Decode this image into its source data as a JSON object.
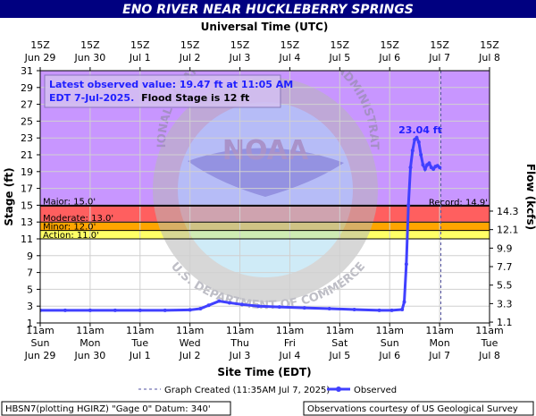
{
  "chart_data": {
    "type": "line",
    "title": "ENO RIVER NEAR HUCKLEBERRY SPRINGS",
    "top_axis_title": "Universal Time (UTC)",
    "bottom_axis_title": "Site Time (EDT)",
    "ylabel_left": "Stage (ft)",
    "ylabel_right": "Flow (kcfs)",
    "ylim": [
      1,
      31
    ],
    "xlim": [
      "2025-06-29T11:00",
      "2025-07-08T11:00"
    ],
    "left_ticks": [
      1,
      3,
      5,
      7,
      9,
      11,
      13,
      15,
      17,
      19,
      21,
      23,
      25,
      27,
      29,
      31
    ],
    "right_ticks": [
      {
        "stage": 1.1,
        "label": "1.1"
      },
      {
        "stage": 3.3,
        "label": "3.3"
      },
      {
        "stage": 5.5,
        "label": "5.5"
      },
      {
        "stage": 7.7,
        "label": "7.7"
      },
      {
        "stage": 9.9,
        "label": "9.9"
      },
      {
        "stage": 12.1,
        "label": "12.1"
      },
      {
        "stage": 14.3,
        "label": "14.3"
      }
    ],
    "top_ticks": [
      {
        "hour": "15Z",
        "date": "Jun 29"
      },
      {
        "hour": "15Z",
        "date": "Jun 30"
      },
      {
        "hour": "15Z",
        "date": "Jul 1"
      },
      {
        "hour": "15Z",
        "date": "Jul 2"
      },
      {
        "hour": "15Z",
        "date": "Jul 3"
      },
      {
        "hour": "15Z",
        "date": "Jul 4"
      },
      {
        "hour": "15Z",
        "date": "Jul 5"
      },
      {
        "hour": "15Z",
        "date": "Jul 6"
      },
      {
        "hour": "15Z",
        "date": "Jul 7"
      },
      {
        "hour": "15Z",
        "date": "Jul 8"
      }
    ],
    "bottom_ticks": [
      {
        "time": "11am",
        "day": "Sun",
        "date": "Jun 29"
      },
      {
        "time": "11am",
        "day": "Mon",
        "date": "Jun 30"
      },
      {
        "time": "11am",
        "day": "Tue",
        "date": "Jul 1"
      },
      {
        "time": "11am",
        "day": "Wed",
        "date": "Jul 2"
      },
      {
        "time": "11am",
        "day": "Thu",
        "date": "Jul 3"
      },
      {
        "time": "11am",
        "day": "Fri",
        "date": "Jul 4"
      },
      {
        "time": "11am",
        "day": "Sat",
        "date": "Jul 5"
      },
      {
        "time": "11am",
        "day": "Sun",
        "date": "Jul 6"
      },
      {
        "time": "11am",
        "day": "Mon",
        "date": "Jul 7"
      },
      {
        "time": "11am",
        "day": "Tue",
        "date": "Jul 8"
      }
    ],
    "thresholds": [
      {
        "label": "Major: 15.0'",
        "value": 15.0,
        "color": "#c896ff"
      },
      {
        "label": "Moderate: 13.0'",
        "value": 13.0,
        "color": "#ff5f5f"
      },
      {
        "label": "Minor: 12.0'",
        "value": 12.0,
        "color": "#ffa500"
      },
      {
        "label": "Action: 11.0'",
        "value": 11.0,
        "color": "#ffff66"
      }
    ],
    "record": {
      "label": "Record: 14.9'",
      "value": 14.9
    },
    "annotation_box": {
      "line1": "Latest observed value: 19.47 ft at 11:05 AM",
      "line2a": "EDT 7-Jul-2025.",
      "line2b": "Flood Stage is 12 ft"
    },
    "peak_label": "23.04 ft",
    "graph_created_time": "2025-07-07T11:35",
    "series": [
      {
        "name": "Observed",
        "color": "#4040ff",
        "x": [
          "2025-06-29T11:00",
          "2025-06-29T23:00",
          "2025-06-30T11:00",
          "2025-06-30T23:00",
          "2025-07-01T11:00",
          "2025-07-01T23:00",
          "2025-07-02T11:00",
          "2025-07-02T16:00",
          "2025-07-02T20:00",
          "2025-07-03T01:00",
          "2025-07-03T06:00",
          "2025-07-03T12:00",
          "2025-07-03T20:00",
          "2025-07-04T06:00",
          "2025-07-04T18:00",
          "2025-07-05T06:00",
          "2025-07-05T18:00",
          "2025-07-06T06:00",
          "2025-07-06T12:00",
          "2025-07-06T17:00",
          "2025-07-06T18:00",
          "2025-07-06T19:00",
          "2025-07-06T20:00",
          "2025-07-06T21:00",
          "2025-07-06T22:00",
          "2025-07-06T23:00",
          "2025-07-07T00:00",
          "2025-07-07T01:00",
          "2025-07-07T02:00",
          "2025-07-07T03:00",
          "2025-07-07T04:00",
          "2025-07-07T05:00",
          "2025-07-07T06:00",
          "2025-07-07T07:00",
          "2025-07-07T08:00",
          "2025-07-07T09:00",
          "2025-07-07T10:00",
          "2025-07-07T11:05"
        ],
        "y": [
          2.5,
          2.5,
          2.5,
          2.5,
          2.5,
          2.5,
          2.55,
          2.7,
          3.1,
          3.6,
          3.4,
          3.2,
          3.0,
          2.9,
          2.8,
          2.7,
          2.6,
          2.5,
          2.5,
          2.6,
          3.5,
          8.0,
          15.0,
          19.5,
          21.5,
          22.8,
          23.04,
          22.5,
          21.0,
          19.8,
          19.3,
          19.8,
          20.0,
          19.5,
          19.3,
          19.6,
          19.7,
          19.47
        ]
      }
    ]
  },
  "legend": {
    "graph_created": "Graph Created (11:35AM Jul 7, 2025)",
    "observed": "Observed"
  },
  "footer": {
    "left": "HBSN7(plotting HGIRZ) \"Gage 0\" Datum: 340'",
    "right": "Observations courtesy of US Geological Survey"
  },
  "watermark": {
    "text": "NOAA",
    "ring_text": "NATIONAL OCEANIC AND ATMOSPHERIC ADMINISTRATION",
    "dept_text": "U.S. DEPARTMENT OF COMMERCE"
  }
}
